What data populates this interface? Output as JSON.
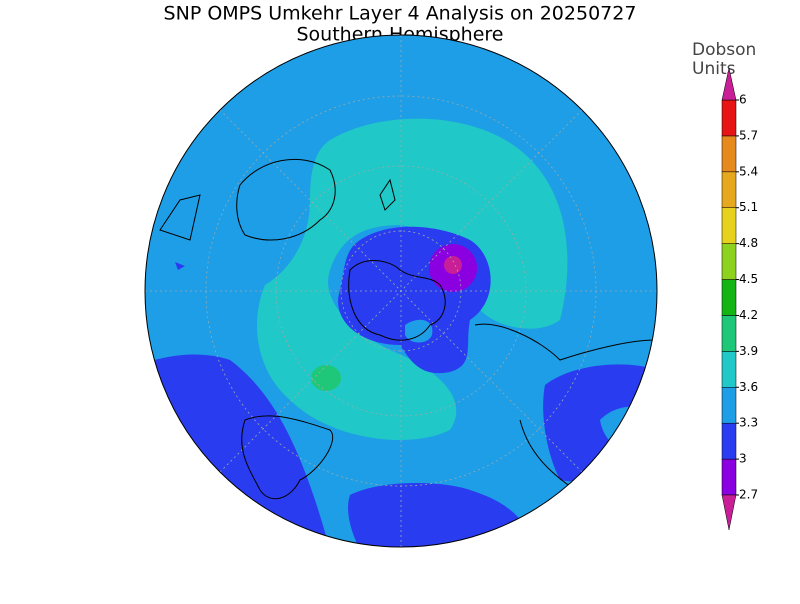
{
  "title": "SNP OMPS Umkehr Layer 4 Analysis on 20250727",
  "subtitle": "Southern Hemisphere",
  "colorbar": {
    "label_lines": [
      "Dobson",
      "Units"
    ],
    "ticks": [
      2.7,
      3,
      3.3,
      3.6,
      3.9,
      4.2,
      4.5,
      4.8,
      5.1,
      5.4,
      5.7,
      6
    ],
    "colors": [
      "#8a00e0",
      "#2a3cf0",
      "#1e9ee6",
      "#20c8c8",
      "#1ec878",
      "#14b414",
      "#8cd21e",
      "#e6d21e",
      "#e6a81e",
      "#e68a1e",
      "#e61414"
    ],
    "under_color": "#c81e96",
    "over_color": "#c81e96"
  }
}
